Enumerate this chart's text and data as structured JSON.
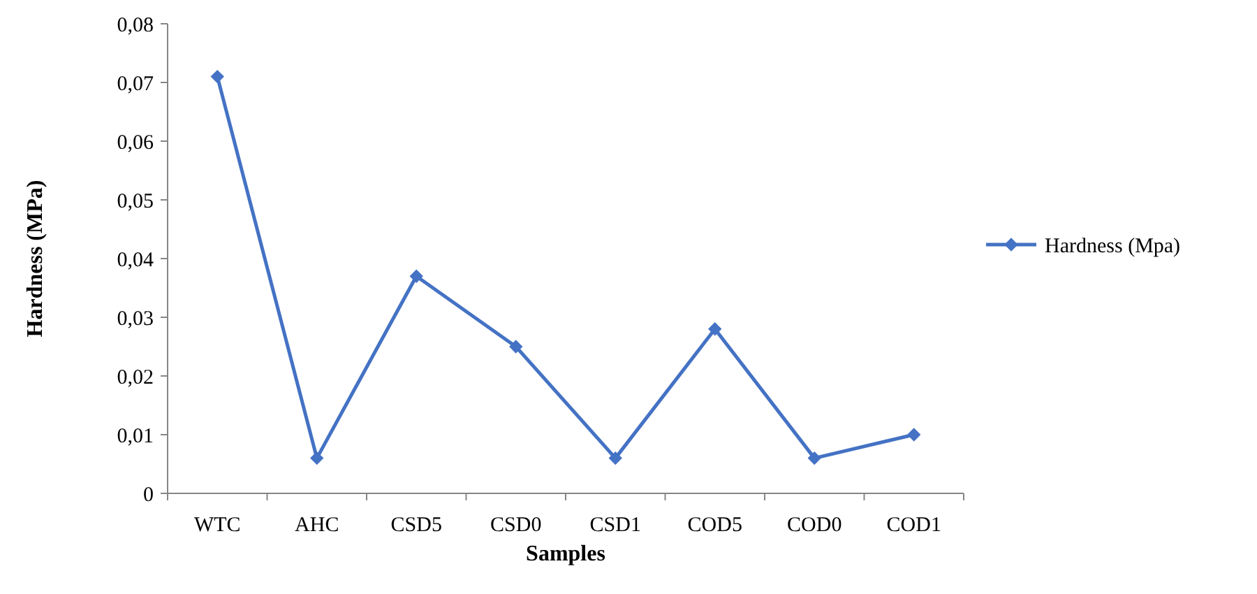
{
  "chart_data": {
    "type": "line",
    "xlabel": "Samples",
    "ylabel": "Hardness (MPa)",
    "categories": [
      "WTC",
      "AHC",
      "CSD5",
      "CSD0",
      "CSD1",
      "COD5",
      "COD0",
      "COD1"
    ],
    "series": [
      {
        "name": "Hardness (Mpa)",
        "color": "#4472c4",
        "values": [
          0.071,
          0.006,
          0.037,
          0.025,
          0.006,
          0.028,
          0.006,
          0.01
        ]
      }
    ],
    "ylim": [
      0,
      0.08
    ],
    "yticks": [
      0,
      {
        "value": 0.01,
        "label": "0,01"
      },
      {
        "value": 0.02,
        "label": "0,02"
      },
      {
        "value": 0.03,
        "label": "0,03"
      },
      {
        "value": 0.04,
        "label": "0,04"
      },
      {
        "value": 0.05,
        "label": "0,05"
      },
      {
        "value": 0.06,
        "label": "0,06"
      },
      {
        "value": 0.07,
        "label": "0,07"
      },
      {
        "value": 0.08,
        "label": "0,08"
      }
    ],
    "grid": false,
    "legend": "right",
    "marker": "diamond",
    "line_style": "solid"
  }
}
